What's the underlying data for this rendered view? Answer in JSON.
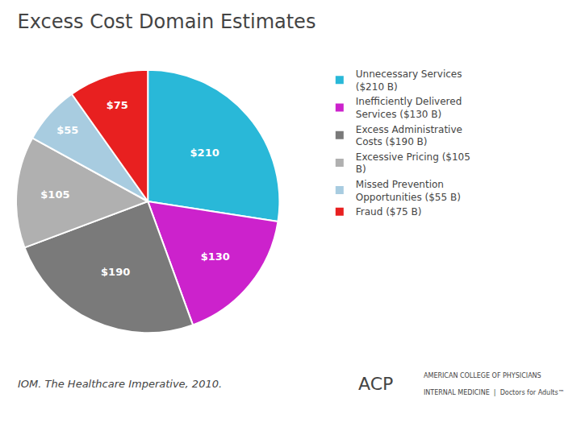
{
  "chart_data": {
    "type": "pie",
    "title": "Excess Cost Domain Estimates",
    "categories": [
      "Unnecessary Services\n($210 B)",
      "Inefficiently Delivered\nServices ($130 B)",
      "Excess Administrative\nCosts ($190 B)",
      "Excessive Pricing ($105\nB)",
      "Missed Prevention\nOpportunities ($55 B)",
      "Fraud ($75 B)"
    ],
    "values": [
      210,
      130,
      190,
      105,
      55,
      75
    ],
    "value_labels": [
      "$210",
      "$130",
      "$190",
      "$105",
      "$55",
      "$75"
    ],
    "colors": [
      "#29b8d8",
      "#cc22cc",
      "#7a7a7a",
      "#b0b0b0",
      "#a8cce0",
      "#e82020"
    ],
    "data_labels": true,
    "legend": "right",
    "annotations": [
      "IOM. The Healthcare Imperative, 2010.",
      "ACP",
      "AMERICAN COLLEGE OF PHYSICIANS",
      "INTERNAL MEDICINE  |  Doctors for Adults™"
    ]
  }
}
